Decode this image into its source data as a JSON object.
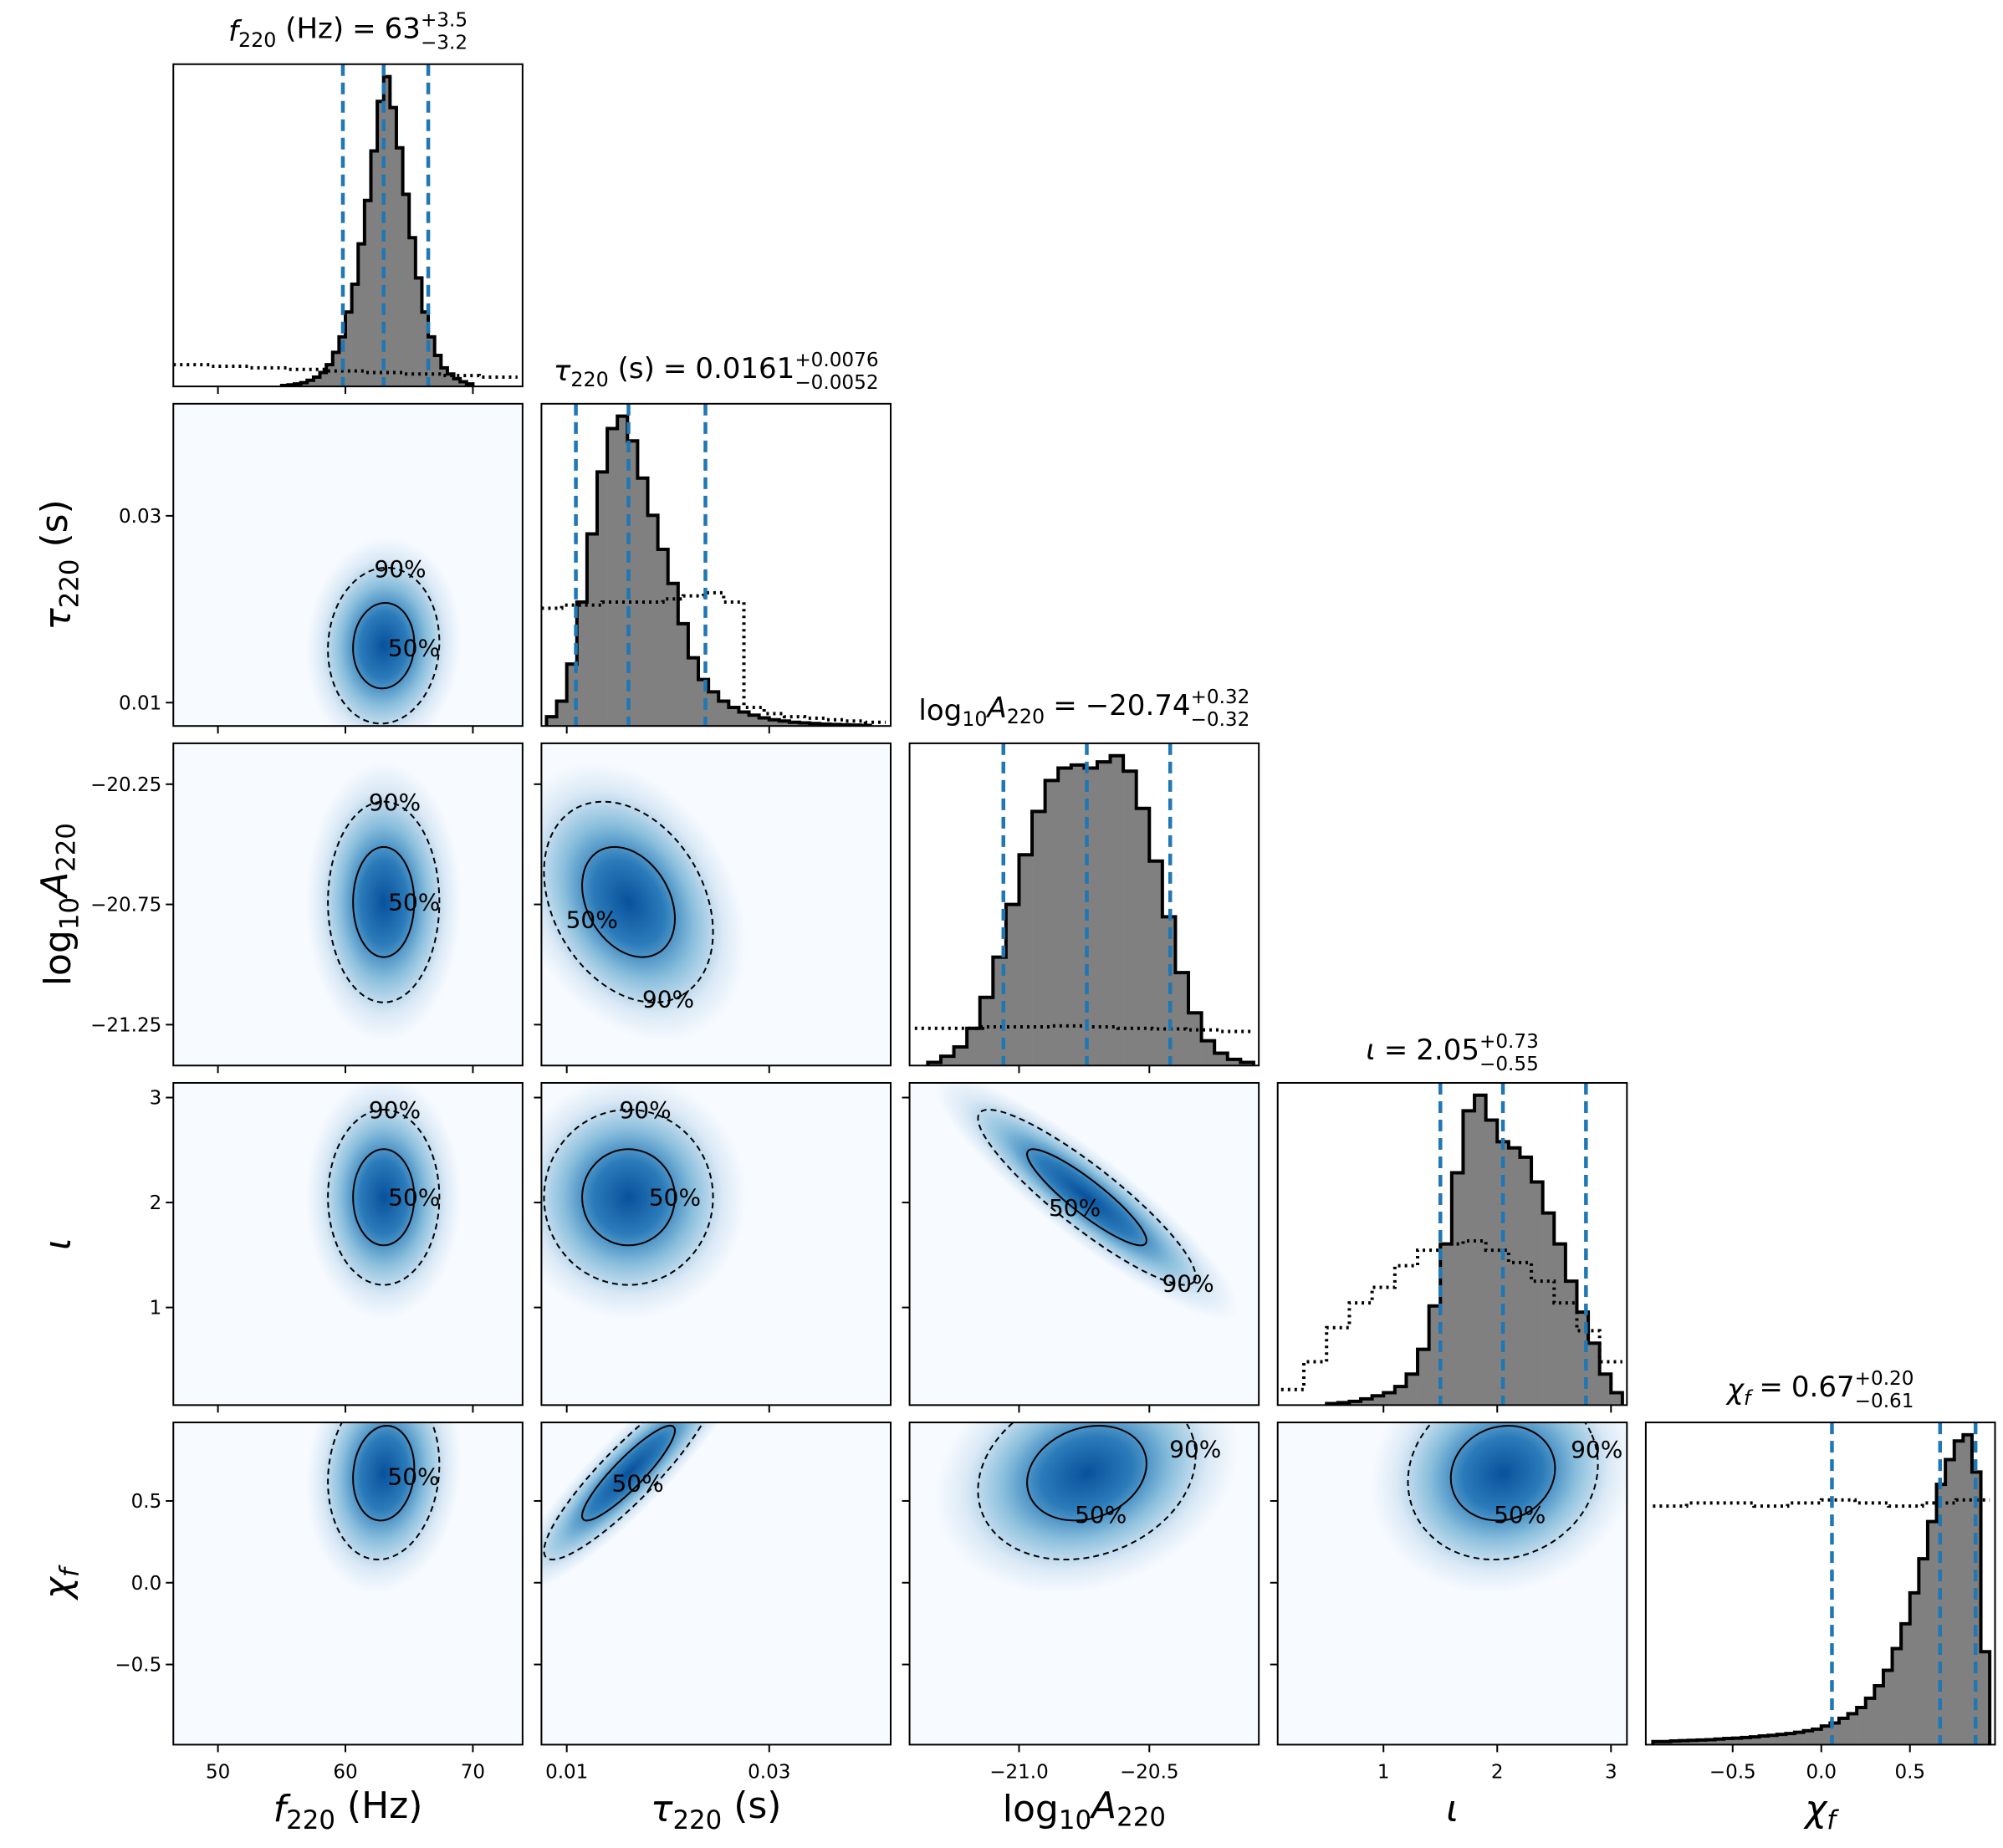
{
  "chart_data": {
    "type": "corner",
    "title_equals": "=",
    "colors": {
      "hist_fill": "#808080",
      "hist_edge": "#000000",
      "prior": "#000000",
      "quantile": "#1f77b4",
      "density": [
        "#08519c",
        "#2b7bba",
        "#89bedc",
        "#dbe9f6",
        "#f7fbff"
      ],
      "contour": "#000000"
    },
    "contour_levels": [
      {
        "value": 50,
        "label": "50%"
      },
      {
        "value": 90,
        "label": "90%"
      }
    ],
    "correlations": [
      [
        0.05
      ],
      [
        0.0,
        -0.3
      ],
      [
        0.0,
        0.0,
        -0.9
      ],
      [
        0.1,
        0.9,
        0.2,
        0.1
      ]
    ],
    "parameters": [
      {
        "label": [
          {
            "text": "f",
            "italic": true
          },
          {
            "text": "220",
            "sub": true
          },
          {
            "text": " (Hz)"
          }
        ],
        "lim": [
          46.5,
          73.9
        ],
        "xticks": [
          50,
          60,
          70
        ],
        "yticks": [],
        "median": 63,
        "err_plus": {
          "value": 3.5,
          "label": "+3.5"
        },
        "err_minus": {
          "value": -3.2,
          "label": "−3.2"
        },
        "hist_ylim": [
          0,
          104
        ],
        "hist": {
          "bins": [
            55,
            55.5,
            56,
            56.5,
            57,
            57.5,
            58,
            58.5,
            59,
            59.5,
            60,
            60.5,
            61,
            61.5,
            62,
            62.5,
            63,
            63.5,
            64,
            64.5,
            65,
            65.5,
            66,
            66.5,
            67,
            67.5,
            68,
            68.5,
            69,
            69.5,
            70
          ],
          "values": [
            0.3,
            0.5,
            0.8,
            1.2,
            2,
            3,
            4.5,
            7,
            11,
            16,
            24,
            33,
            46,
            60,
            76,
            92,
            100,
            90,
            77,
            62,
            48,
            35,
            24,
            16,
            10,
            6,
            4,
            2.5,
            1.5,
            0.8
          ]
        },
        "prior": {
          "bins": [
            46.5,
            49.5,
            52.5,
            55.5,
            58.5,
            61.5,
            64.5,
            67.5,
            70.5,
            73.5
          ],
          "values": [
            7,
            6.5,
            6,
            5.5,
            5,
            4.5,
            4,
            3.5,
            3
          ]
        }
      },
      {
        "label": [
          {
            "text": "τ",
            "italic": true
          },
          {
            "text": "220",
            "sub": true
          },
          {
            "text": " (s)"
          }
        ],
        "lim": [
          0.0075,
          0.042
        ],
        "xticks": [
          0.01,
          0.03
        ],
        "yticks": [
          0.01,
          0.03
        ],
        "median": 0.0161,
        "err_plus": {
          "value": 0.0076,
          "label": "+0.0076"
        },
        "err_minus": {
          "value": -0.0052,
          "label": "−0.0052"
        },
        "hist_ylim": [
          0,
          104
        ],
        "hist": {
          "bins": [
            0.008,
            0.009,
            0.01,
            0.011,
            0.012,
            0.013,
            0.014,
            0.015,
            0.016,
            0.017,
            0.018,
            0.019,
            0.02,
            0.021,
            0.022,
            0.023,
            0.024,
            0.025,
            0.026,
            0.027,
            0.028,
            0.029,
            0.03,
            0.031,
            0.032,
            0.033,
            0.034,
            0.035,
            0.036,
            0.037,
            0.038,
            0.039,
            0.04
          ],
          "values": [
            3,
            8,
            20,
            40,
            62,
            82,
            96,
            100,
            92,
            80,
            68,
            57,
            46,
            33,
            22,
            15,
            11,
            8,
            6,
            4.5,
            3.5,
            2.6,
            2,
            1.6,
            1.2,
            1,
            0.8,
            0.6,
            0.5,
            0.4,
            0.3,
            0.2
          ]
        },
        "prior": {
          "bins": [
            0.0075,
            0.0095,
            0.0115,
            0.0135,
            0.0155,
            0.0175,
            0.0195,
            0.0215,
            0.0235,
            0.0255,
            0.0275,
            0.0295,
            0.0315,
            0.0335,
            0.0355,
            0.0375,
            0.0395,
            0.0415
          ],
          "values": [
            38,
            39,
            39,
            40,
            40,
            40,
            41,
            42,
            43,
            40,
            6,
            4,
            3,
            2.5,
            2,
            1.6,
            1.2
          ]
        }
      },
      {
        "label": [
          {
            "text": "log"
          },
          {
            "text": "10",
            "sub": true
          },
          {
            "text": "A",
            "italic": true
          },
          {
            "text": "220",
            "sub": true
          }
        ],
        "lim": [
          -21.42,
          -20.08
        ],
        "xticks": [
          {
            "value": -21.0,
            "label": "−21.0"
          },
          {
            "value": -20.5,
            "label": "−20.5"
          }
        ],
        "yticks": [
          {
            "value": -20.25,
            "label": "−20.25"
          },
          {
            "value": -20.75,
            "label": "−20.75"
          },
          {
            "value": -21.25,
            "label": "−21.25"
          }
        ],
        "median": {
          "value": -20.74,
          "label": "−20.74"
        },
        "err_plus": {
          "value": 0.32,
          "label": "+0.32"
        },
        "err_minus": {
          "value": -0.32,
          "label": "−0.32"
        },
        "hist_ylim": [
          0,
          104
        ],
        "hist": {
          "bins": [
            -21.35,
            -21.3,
            -21.25,
            -21.2,
            -21.15,
            -21.1,
            -21.05,
            -21.0,
            -20.95,
            -20.9,
            -20.85,
            -20.8,
            -20.75,
            -20.7,
            -20.65,
            -20.6,
            -20.55,
            -20.5,
            -20.45,
            -20.4,
            -20.35,
            -20.3,
            -20.25,
            -20.2,
            -20.15,
            -20.1
          ],
          "values": [
            1,
            3,
            6,
            12,
            22,
            35,
            52,
            68,
            82,
            92,
            96,
            97,
            96,
            98,
            100,
            95,
            83,
            66,
            48,
            30,
            17,
            8,
            4,
            2,
            1
          ]
        },
        "prior": {
          "bins": [
            -21.4,
            -21.27,
            -21.14,
            -21.01,
            -20.88,
            -20.75,
            -20.62,
            -20.49,
            -20.36,
            -20.23,
            -20.1
          ],
          "values": [
            12,
            12,
            12.5,
            12.5,
            12.8,
            12.5,
            12,
            11.8,
            11.5,
            11
          ]
        }
      },
      {
        "label": [
          {
            "text": "ι",
            "italic": true
          }
        ],
        "lim": [
          0.07,
          3.14
        ],
        "xticks": [
          1,
          2,
          3
        ],
        "yticks": [
          1,
          2,
          3
        ],
        "median": 2.05,
        "err_plus": {
          "value": 0.73,
          "label": "+0.73"
        },
        "err_minus": {
          "value": -0.55,
          "label": "−0.55"
        },
        "hist_ylim": [
          0,
          104
        ],
        "hist": {
          "bins": [
            0.5,
            0.6,
            0.7,
            0.8,
            0.9,
            1.0,
            1.1,
            1.2,
            1.3,
            1.4,
            1.5,
            1.6,
            1.7,
            1.8,
            1.9,
            2.0,
            2.1,
            2.2,
            2.3,
            2.4,
            2.5,
            2.6,
            2.7,
            2.8,
            2.9,
            3.0,
            3.1
          ],
          "values": [
            0.5,
            0.8,
            1.2,
            2,
            3,
            4,
            6,
            10,
            18,
            32,
            52,
            75,
            95,
            100,
            92,
            85,
            83,
            80,
            72,
            62,
            52,
            40,
            30,
            20,
            10,
            4
          ]
        },
        "prior": {
          "bins": [
            0.1,
            0.3,
            0.5,
            0.7,
            0.9,
            1.1,
            1.3,
            1.5,
            1.7,
            1.9,
            2.1,
            2.3,
            2.5,
            2.7,
            2.9,
            3.1
          ],
          "values": [
            5,
            14,
            25,
            33,
            38,
            45,
            50,
            52,
            53,
            50,
            46,
            40,
            33,
            24,
            14
          ]
        }
      },
      {
        "label": [
          {
            "text": "χ",
            "italic": true
          },
          {
            "text": "f",
            "sub": true,
            "italic": true
          }
        ],
        "lim": [
          -0.99,
          0.98
        ],
        "xticks": [
          {
            "value": -0.5,
            "label": "−0.5"
          },
          {
            "value": 0.0,
            "label": "0.0"
          },
          0.5
        ],
        "yticks": [
          0.5,
          {
            "value": 0.0,
            "label": "0.0"
          },
          {
            "value": -0.5,
            "label": "−0.5"
          }
        ],
        "median": 0.67,
        "err_plus": {
          "value": 0.2,
          "label": "+0.20"
        },
        "err_minus": {
          "value": -0.61,
          "label": "−0.61"
        },
        "hist_ylim": [
          0,
          104
        ],
        "hist": {
          "bins": [
            -0.95,
            -0.9,
            -0.85,
            -0.8,
            -0.75,
            -0.7,
            -0.65,
            -0.6,
            -0.55,
            -0.5,
            -0.45,
            -0.4,
            -0.35,
            -0.3,
            -0.25,
            -0.2,
            -0.15,
            -0.1,
            -0.05,
            0.0,
            0.05,
            0.1,
            0.15,
            0.2,
            0.25,
            0.3,
            0.35,
            0.4,
            0.45,
            0.5,
            0.55,
            0.6,
            0.65,
            0.7,
            0.75,
            0.8,
            0.85,
            0.9,
            0.95
          ],
          "values": [
            1,
            1,
            1.2,
            1.3,
            1.4,
            1.5,
            1.6,
            1.8,
            2,
            2.1,
            2.3,
            2.5,
            2.8,
            3,
            3.3,
            3.6,
            4,
            4.5,
            5,
            6,
            7,
            8.5,
            10,
            12,
            15,
            19,
            24,
            31,
            39,
            49,
            60,
            72,
            84,
            92,
            98,
            100,
            88,
            30
          ]
        },
        "prior": {
          "bins": [
            -0.95,
            -0.76,
            -0.57,
            -0.38,
            -0.19,
            0.0,
            0.19,
            0.38,
            0.57,
            0.76,
            0.95
          ],
          "values": [
            77,
            78,
            78,
            77,
            78,
            79,
            78,
            77,
            78,
            79
          ]
        }
      }
    ]
  }
}
